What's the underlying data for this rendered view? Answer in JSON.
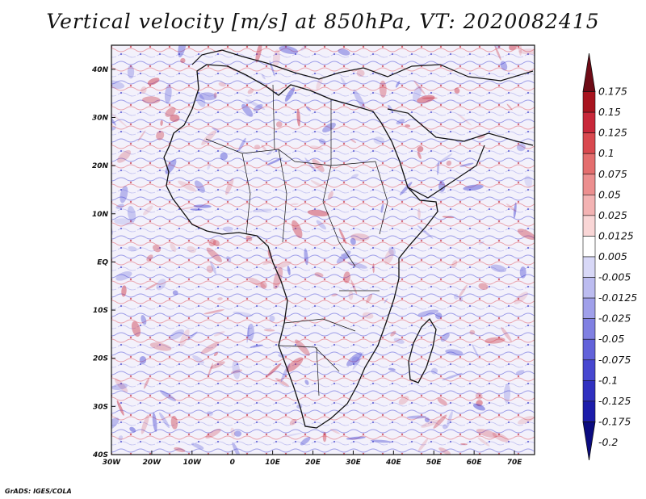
{
  "title": "Vertical velocity [m/s] at 850hPa, VT: 2020082415",
  "credit": "GrADS: IGES/COLA",
  "map": {
    "lon_range": [
      -30,
      75
    ],
    "lat_range": [
      -40,
      45
    ],
    "field_colors": {
      "positive": "#c8283a",
      "negative": "#3a3ad0",
      "neutral": "#ffffff"
    },
    "lon_ticks": [
      {
        "value": -30,
        "label": "30W"
      },
      {
        "value": -20,
        "label": "20W"
      },
      {
        "value": -10,
        "label": "10W"
      },
      {
        "value": 0,
        "label": "0"
      },
      {
        "value": 10,
        "label": "10E"
      },
      {
        "value": 20,
        "label": "20E"
      },
      {
        "value": 30,
        "label": "30E"
      },
      {
        "value": 40,
        "label": "40E"
      },
      {
        "value": 50,
        "label": "50E"
      },
      {
        "value": 60,
        "label": "60E"
      },
      {
        "value": 70,
        "label": "70E"
      }
    ],
    "lat_ticks": [
      {
        "value": 40,
        "label": "40N"
      },
      {
        "value": 30,
        "label": "30N"
      },
      {
        "value": 20,
        "label": "20N"
      },
      {
        "value": 10,
        "label": "10N"
      },
      {
        "value": 0,
        "label": "EQ"
      },
      {
        "value": -10,
        "label": "10S"
      },
      {
        "value": -20,
        "label": "20S"
      },
      {
        "value": -30,
        "label": "30S"
      },
      {
        "value": -40,
        "label": "40S"
      }
    ]
  },
  "colorbar": {
    "labels": [
      "0.175",
      "0.15",
      "0.125",
      "0.1",
      "0.075",
      "0.05",
      "0.025",
      "0.0125",
      "0.005",
      "-0.005",
      "-0.0125",
      "-0.025",
      "-0.05",
      "-0.075",
      "-0.1",
      "-0.125",
      "-0.175",
      "-0.2"
    ],
    "colors": [
      "#6e0b16",
      "#a8141f",
      "#c8283a",
      "#d9494f",
      "#e46e6e",
      "#ec8f8f",
      "#f3b3b3",
      "#f9d6d6",
      "#ffffff",
      "#d8d8f7",
      "#bcbcf0",
      "#a0a0ea",
      "#8080e2",
      "#6262da",
      "#4747d0",
      "#3030c0",
      "#1c1caa",
      "#0b0b80"
    ]
  }
}
